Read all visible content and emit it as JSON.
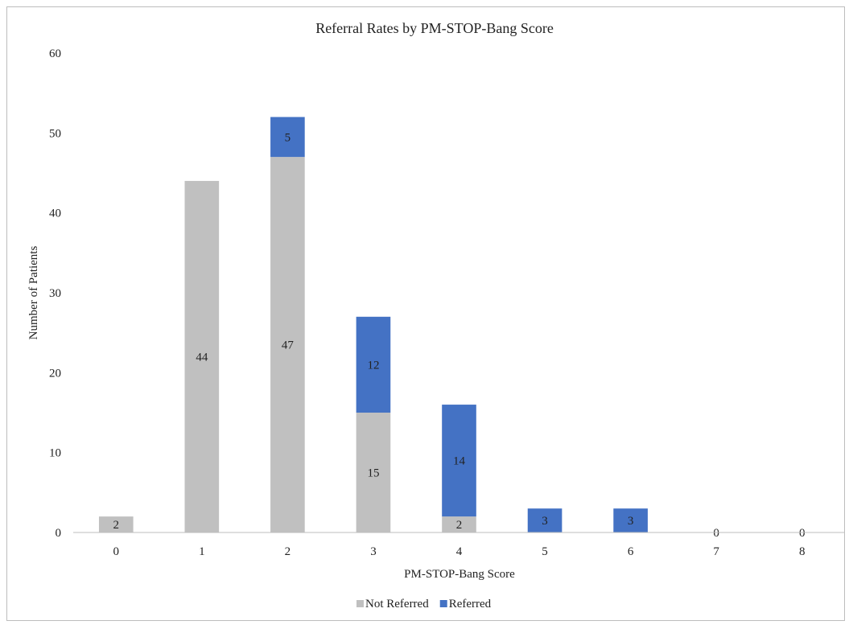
{
  "chart_data": {
    "type": "bar",
    "stacked": true,
    "title": "Referral Rates by PM-STOP-Bang Score",
    "xlabel": "PM-STOP-Bang Score",
    "ylabel": "Number of Patients",
    "categories": [
      "0",
      "1",
      "2",
      "3",
      "4",
      "5",
      "6",
      "7",
      "8"
    ],
    "ylim": [
      0,
      60
    ],
    "yticks": [
      0,
      10,
      20,
      30,
      40,
      50,
      60
    ],
    "grid": false,
    "legend_position": "bottom",
    "series": [
      {
        "name": "Not Referred",
        "color": "#c0c0c0",
        "values": [
          2,
          44,
          47,
          15,
          2,
          0,
          0,
          0,
          0
        ]
      },
      {
        "name": "Referred",
        "color": "#4472c4",
        "values": [
          0,
          0,
          5,
          12,
          14,
          3,
          3,
          0,
          0
        ]
      }
    ],
    "data_labels": [
      {
        "category": "0",
        "series": "Not Referred",
        "text": "2"
      },
      {
        "category": "1",
        "series": "Not Referred",
        "text": "44"
      },
      {
        "category": "2",
        "series": "Not Referred",
        "text": "47"
      },
      {
        "category": "2",
        "series": "Referred",
        "text": "5"
      },
      {
        "category": "3",
        "series": "Not Referred",
        "text": "15"
      },
      {
        "category": "3",
        "series": "Referred",
        "text": "12"
      },
      {
        "category": "4",
        "series": "Not Referred",
        "text": "2"
      },
      {
        "category": "4",
        "series": "Referred",
        "text": "14"
      },
      {
        "category": "5",
        "series": "Referred",
        "text": "3"
      },
      {
        "category": "6",
        "series": "Referred",
        "text": "3"
      },
      {
        "category": "7",
        "series": "Referred",
        "text": "0"
      },
      {
        "category": "8",
        "series": "Referred",
        "text": "0"
      }
    ]
  }
}
